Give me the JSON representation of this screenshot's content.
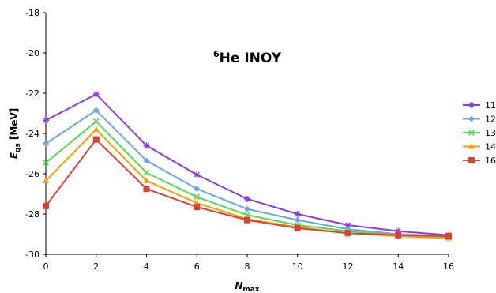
{
  "chart_data": {
    "type": "line",
    "title": {
      "superscript": "6",
      "text": "He INOY"
    },
    "xlabel": {
      "main": "N",
      "sub": "max"
    },
    "ylabel": {
      "main": "E",
      "sub": "gs",
      "unit": "[MeV]"
    },
    "x": [
      0,
      2,
      4,
      6,
      8,
      10,
      12,
      14,
      16
    ],
    "xlim": [
      0,
      16
    ],
    "ylim": [
      -30,
      -18
    ],
    "xticks": [
      "0",
      "2",
      "4",
      "6",
      "8",
      "10",
      "12",
      "14",
      "16"
    ],
    "yticks": [
      "-18",
      "-20",
      "-22",
      "-24",
      "-26",
      "-28",
      "-30"
    ],
    "grid": false,
    "legend_position": "right",
    "series": [
      {
        "name": "11",
        "marker": "star",
        "color": "#8c3cdc",
        "values": [
          -23.35,
          -22.05,
          -24.6,
          -26.05,
          -27.25,
          -28.0,
          -28.55,
          -28.85,
          -29.05
        ]
      },
      {
        "name": "12",
        "marker": "diamond",
        "color": "#6ba6e8",
        "values": [
          -24.5,
          -22.85,
          -25.35,
          -26.75,
          -27.75,
          -28.3,
          -28.75,
          -29.0,
          -29.1
        ]
      },
      {
        "name": "13",
        "marker": "x",
        "color": "#59d659",
        "values": [
          -25.45,
          -23.4,
          -25.95,
          -27.15,
          -28.05,
          -28.55,
          -28.85,
          -29.05,
          -29.15
        ]
      },
      {
        "name": "14",
        "marker": "triangle",
        "color": "#f2a100",
        "values": [
          -26.35,
          -23.8,
          -26.35,
          -27.45,
          -28.25,
          -28.65,
          -28.95,
          -29.1,
          -29.2
        ]
      },
      {
        "name": "16",
        "marker": "square",
        "color": "#d94336",
        "values": [
          -27.6,
          -24.3,
          -26.75,
          -27.65,
          -28.3,
          -28.7,
          -28.95,
          -29.05,
          -29.1
        ]
      }
    ]
  }
}
